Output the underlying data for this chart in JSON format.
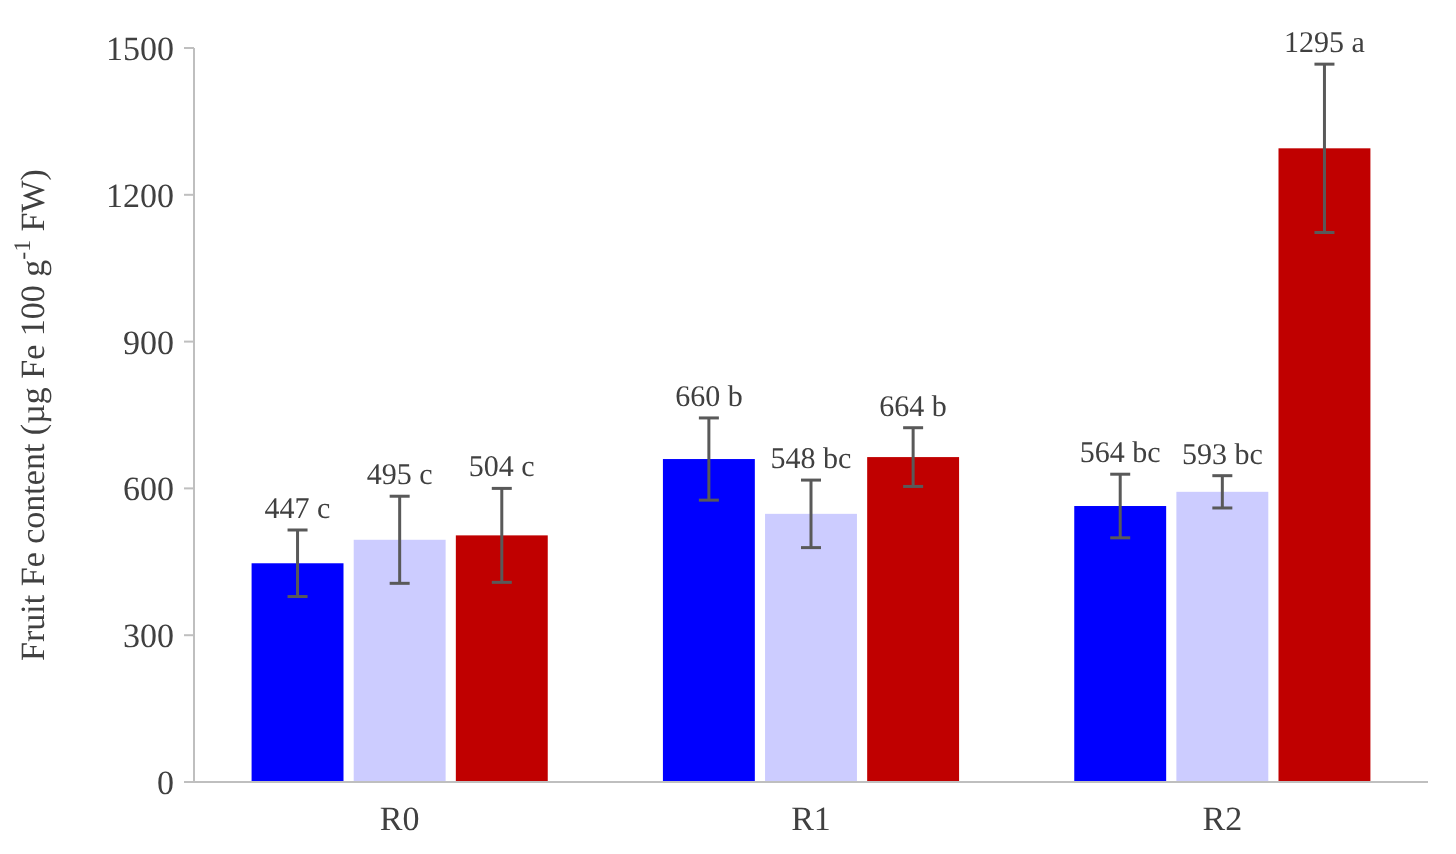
{
  "chart_data": {
    "type": "bar",
    "ylabel": "Fruit Fe content (µg Fe 100 g$^{-1}$ FW)",
    "categories": [
      "R0",
      "R1",
      "R2"
    ],
    "series": [
      {
        "color": "#0000ff",
        "values": [
          447,
          660,
          564
        ],
        "errors": [
          68,
          84,
          65
        ],
        "value_labels": [
          "447 c",
          "660 b",
          "564 bc"
        ]
      },
      {
        "color": "#ccccff",
        "values": [
          495,
          548,
          593
        ],
        "errors": [
          89,
          69,
          33
        ],
        "value_labels": [
          "495 c",
          "548 bc",
          "593 bc"
        ]
      },
      {
        "color": "#c00000",
        "values": [
          504,
          664,
          1295
        ],
        "errors": [
          96,
          60,
          172
        ],
        "value_labels": [
          "504 c",
          "664 b",
          "1295 a"
        ]
      }
    ],
    "ylim": [
      0,
      1500
    ],
    "yticks": [
      0,
      300,
      600,
      900,
      1200,
      1500
    ],
    "grid": false
  }
}
